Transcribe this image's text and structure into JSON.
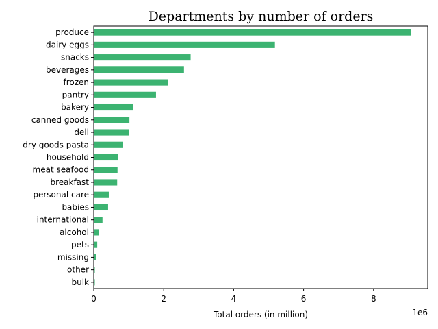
{
  "chart_data": {
    "type": "bar",
    "orientation": "horizontal",
    "title": "Departments by number of orders",
    "xlabel": "Total orders (in million)",
    "ylabel": "",
    "x_offset_label": "1e6",
    "xlim": [
      0,
      9.55
    ],
    "xticks": [
      0,
      2,
      4,
      6,
      8
    ],
    "xtick_labels": [
      "0",
      "2",
      "4",
      "6",
      "8"
    ],
    "bar_color": "#3cb371",
    "grid": false,
    "categories": [
      "produce",
      "dairy eggs",
      "snacks",
      "beverages",
      "frozen",
      "pantry",
      "bakery",
      "canned goods",
      "deli",
      "dry goods pasta",
      "household",
      "meat seafood",
      "breakfast",
      "personal care",
      "babies",
      "international",
      "alcohol",
      "pets",
      "missing",
      "other",
      "bulk"
    ],
    "values": [
      9.08,
      5.18,
      2.77,
      2.58,
      2.13,
      1.78,
      1.12,
      1.02,
      1.0,
      0.83,
      0.7,
      0.68,
      0.67,
      0.43,
      0.41,
      0.25,
      0.14,
      0.1,
      0.06,
      0.03,
      0.03
    ]
  }
}
